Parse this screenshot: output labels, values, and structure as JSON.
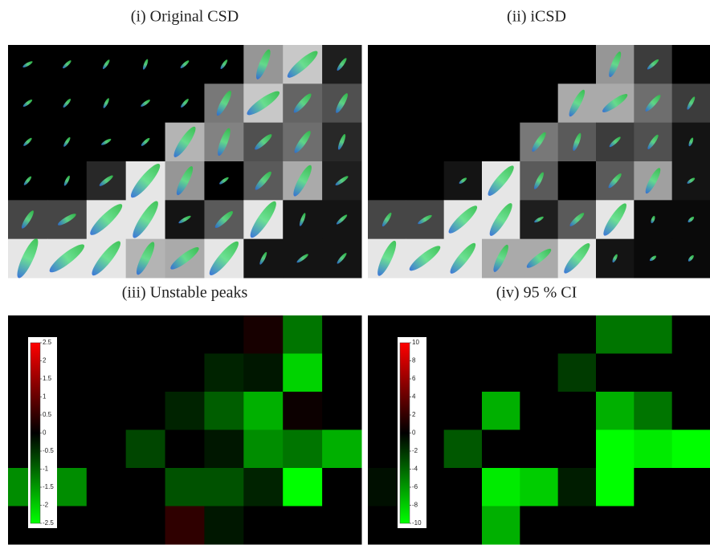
{
  "panels": [
    {
      "title": "(i) Original CSD"
    },
    {
      "title": "(ii) iCSD"
    }
  ],
  "chart_data": [
    {
      "type": "heatmap",
      "title": "(iii) Unstable peaks",
      "values": [
        [
          0,
          0,
          0,
          0,
          0,
          0,
          0.2,
          -1,
          0
        ],
        [
          0,
          0,
          0,
          0,
          0,
          -0.3,
          -0.2,
          -1.8,
          0
        ],
        [
          0,
          0,
          0,
          0,
          -0.3,
          -0.8,
          -1.5,
          0.1,
          0
        ],
        [
          0,
          0,
          0,
          -0.6,
          0,
          -0.2,
          -1.2,
          -1,
          -1.5
        ],
        [
          -1.2,
          -1.2,
          0,
          0,
          -0.7,
          -0.7,
          -0.3,
          -2.3,
          0
        ],
        [
          0,
          0,
          0,
          0,
          0.4,
          -0.2,
          0,
          0,
          0
        ]
      ],
      "zlim": [
        -2.5,
        2.5
      ],
      "zticks": [
        2.5,
        2,
        1.5,
        1,
        0.5,
        0,
        -0.5,
        -1,
        -1.5,
        -2,
        -2.5
      ]
    },
    {
      "type": "heatmap",
      "title": "(iv) 95 % CI",
      "values": [
        [
          0,
          0,
          0,
          0,
          0,
          0,
          -4,
          -4,
          0
        ],
        [
          0,
          0,
          0,
          0,
          0,
          -2,
          0,
          0,
          0
        ],
        [
          0,
          0,
          0,
          -6,
          0,
          0,
          -6,
          -4,
          0
        ],
        [
          0,
          0,
          -3,
          0,
          0,
          0,
          -9,
          -8,
          -10
        ],
        [
          -0.5,
          0,
          0,
          -8,
          -7,
          -1,
          -10,
          0,
          0
        ],
        [
          0,
          0,
          0,
          -6,
          0,
          0,
          0,
          0,
          0
        ]
      ],
      "zlim": [
        -10,
        10
      ],
      "zticks": [
        10,
        8,
        6,
        4,
        2,
        0,
        -2,
        -4,
        -6,
        -8,
        -10
      ]
    }
  ]
}
